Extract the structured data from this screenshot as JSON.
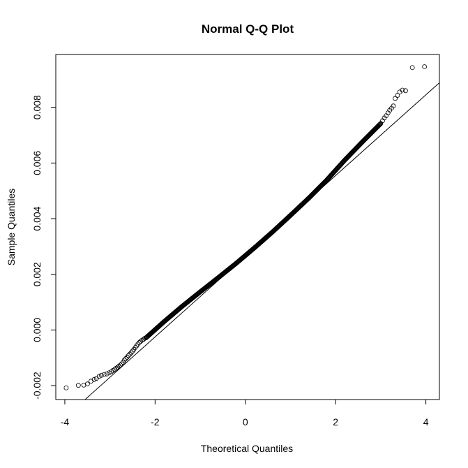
{
  "chart_data": {
    "type": "scatter",
    "title": "Normal Q-Q Plot",
    "xlabel": "Theoretical Quantiles",
    "ylabel": "Sample Quantiles",
    "xlim": [
      -4.2,
      4.3
    ],
    "ylim": [
      -0.0025,
      0.0099
    ],
    "x_ticks": [
      -4,
      -2,
      0,
      2,
      4
    ],
    "x_tick_labels": [
      "-4",
      "-2",
      "0",
      "2",
      "4"
    ],
    "y_ticks": [
      -0.002,
      0.0,
      0.002,
      0.004,
      0.006,
      0.008
    ],
    "y_tick_labels": [
      "-0.002",
      "0.000",
      "0.002",
      "0.004",
      "0.006",
      "0.008"
    ],
    "grid": false,
    "legend": "none",
    "marker": "open-circle",
    "colors": {
      "points": "#000000",
      "line": "#000000",
      "frame": "#000000"
    },
    "reference_line": {
      "intercept": 0.00265,
      "slope": 0.00145
    },
    "points": [
      [
        -3.97,
        -0.00208
      ],
      [
        -3.7,
        -0.00199
      ],
      [
        -3.58,
        -0.00198
      ],
      [
        -3.5,
        -0.00194
      ],
      [
        -3.42,
        -0.00184
      ],
      [
        -3.35,
        -0.00178
      ],
      [
        -3.3,
        -0.00174
      ],
      [
        -3.24,
        -0.00167
      ],
      [
        -3.19,
        -0.00163
      ],
      [
        -3.13,
        -0.0016
      ],
      [
        -3.07,
        -0.00158
      ],
      [
        -3.02,
        -0.00154
      ],
      [
        -2.97,
        -0.0015
      ],
      [
        -2.93,
        -0.00145
      ],
      [
        -2.89,
        -0.00141
      ],
      [
        -2.86,
        -0.00137
      ],
      [
        -2.83,
        -0.00134
      ],
      [
        -2.8,
        -0.0013
      ],
      [
        -2.77,
        -0.00126
      ],
      [
        -2.74,
        -0.00122
      ],
      [
        -2.71,
        -0.00116
      ],
      [
        -2.68,
        -0.00108
      ],
      [
        -2.65,
        -0.00103
      ],
      [
        -2.62,
        -0.00098
      ],
      [
        -2.59,
        -0.00092
      ],
      [
        -2.56,
        -0.00087
      ],
      [
        -2.53,
        -0.00082
      ],
      [
        -2.5,
        -0.00076
      ],
      [
        -2.47,
        -0.0007
      ],
      [
        -2.44,
        -0.00063
      ],
      [
        -2.41,
        -0.00057
      ],
      [
        -2.38,
        -0.00051
      ],
      [
        -2.35,
        -0.00045
      ],
      [
        -2.32,
        -0.00041
      ],
      [
        -2.29,
        -0.00037
      ],
      [
        -2.26,
        -0.00034
      ],
      [
        -2.23,
        -0.0003
      ],
      [
        3.0,
        0.00742
      ],
      [
        3.04,
        0.00752
      ],
      [
        3.08,
        0.00762
      ],
      [
        3.12,
        0.0077
      ],
      [
        3.16,
        0.0078
      ],
      [
        3.2,
        0.0079
      ],
      [
        3.24,
        0.00797
      ],
      [
        3.28,
        0.00805
      ],
      [
        3.32,
        0.00832
      ],
      [
        3.37,
        0.00843
      ],
      [
        3.42,
        0.00855
      ],
      [
        3.48,
        0.00862
      ],
      [
        3.55,
        0.0086
      ],
      [
        3.7,
        0.00943
      ],
      [
        3.97,
        0.00946
      ]
    ],
    "dense_band": {
      "description_free": true,
      "x": [
        -2.2,
        -1.8,
        -1.4,
        -1.0,
        -0.6,
        -0.2,
        0.2,
        0.6,
        1.0,
        1.4,
        1.8,
        2.2,
        2.6,
        3.0
      ],
      "y": [
        -0.00028,
        0.0003,
        0.00085,
        0.00137,
        0.00188,
        0.0024,
        0.00295,
        0.00352,
        0.00412,
        0.00473,
        0.00538,
        0.0061,
        0.00677,
        0.00742
      ]
    }
  }
}
